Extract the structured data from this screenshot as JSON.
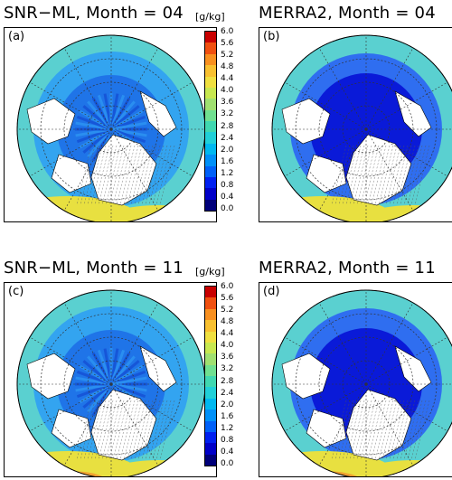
{
  "titles": {
    "a": "SNR−ML, Month = 04",
    "b": "MERRA2, Month = 04",
    "c": "SNR−ML, Month = 11",
    "d": "MERRA2, Month = 11"
  },
  "panel_labels": {
    "a": "(a)",
    "b": "(b)",
    "c": "(c)",
    "d": "(d)"
  },
  "units": "[g/kg]",
  "colorbar": {
    "ticks": [
      "6.0",
      "5.6",
      "5.2",
      "4.8",
      "4.4",
      "4.0",
      "3.6",
      "3.2",
      "2.8",
      "2.4",
      "2.0",
      "1.6",
      "1.2",
      "0.8",
      "0.4",
      "0.0"
    ],
    "colors": [
      "#00007a",
      "#0000c8",
      "#0020f0",
      "#0060f8",
      "#0090f8",
      "#00b8f0",
      "#20d0d8",
      "#40d8b0",
      "#70e090",
      "#a0e070",
      "#c8e850",
      "#f0e040",
      "#f8c030",
      "#f89020",
      "#f05010",
      "#c80000"
    ]
  },
  "map_colors": {
    "ocean_pole": "#1f74e8",
    "ocean_mid": "#33a4f0",
    "ocean_low": "#5ad0d0",
    "warm": "#e8e040",
    "hot": "#f0a030",
    "merra_pole": "#0a1ad8",
    "merra_mid": "#2f6ef0"
  }
}
